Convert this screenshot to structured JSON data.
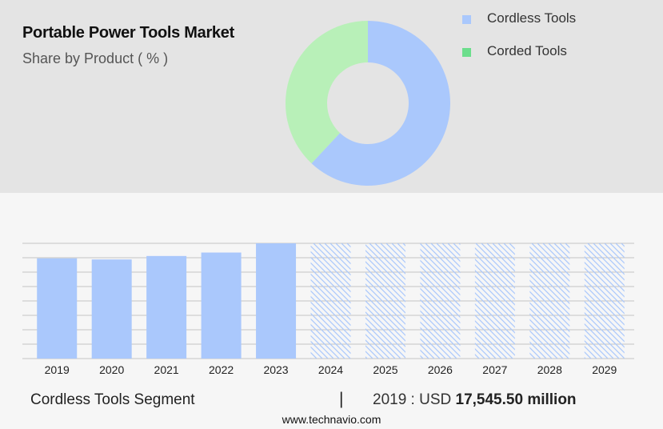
{
  "header": {
    "title": "Portable Power Tools Market",
    "subtitle": "Share by Product ( % )"
  },
  "colors": {
    "cordless": "#aac8fc",
    "corded_donut": "#b8f0b8",
    "corded_legend": "#6cde8c",
    "hatch": "#aac8fc"
  },
  "chart_data": [
    {
      "type": "pie",
      "variant": "donut",
      "title": "Portable Power Tools Market",
      "subtitle": "Share by Product ( % )",
      "categories": [
        "Cordless Tools",
        "Corded Tools"
      ],
      "values": [
        62,
        38
      ],
      "legend_position": "top-right"
    },
    {
      "type": "bar",
      "categories": [
        "2019",
        "2020",
        "2021",
        "2022",
        "2023",
        "2024",
        "2025",
        "2026",
        "2027",
        "2028",
        "2029"
      ],
      "values": [
        87,
        86,
        89,
        92,
        100,
        100,
        100,
        100,
        100,
        100,
        100
      ],
      "forecast_from": "2024",
      "ylim": [
        0,
        100
      ],
      "grid": true
    }
  ],
  "footer": {
    "segment": "Cordless Tools Segment",
    "separator": "|",
    "value_prefix": "2019 : USD",
    "value": "17,545.50 million",
    "url": "www.technavio.com"
  }
}
